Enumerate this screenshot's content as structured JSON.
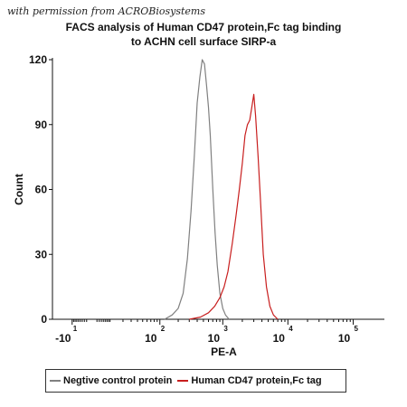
{
  "attribution": "with permission from ACROBiosystems",
  "chart_data": {
    "type": "line",
    "title_lines": [
      "FACS analysis of Human CD47 protein,Fc tag binding",
      "to ACHN cell surface SIRP-a"
    ],
    "xlabel": "PE-A",
    "ylabel": "Count",
    "ylim": [
      0,
      120
    ],
    "yticks": [
      "0",
      "30",
      "60",
      "90",
      "120"
    ],
    "xaxis": {
      "scale": "biexponential",
      "xlim": [
        -30,
        300000
      ]
    },
    "xticks": [
      {
        "label": "-10",
        "exp": "1"
      },
      {
        "label": "10",
        "exp": "2"
      },
      {
        "label": "10",
        "exp": "3"
      },
      {
        "label": "10",
        "exp": "4"
      },
      {
        "label": "10",
        "exp": "5"
      }
    ],
    "legend_position": "bottom",
    "series": [
      {
        "name": "Negtive control protein",
        "color": "#808080",
        "x": [
          120,
          160,
          200,
          240,
          280,
          320,
          360,
          400,
          440,
          480,
          520,
          560,
          600,
          640,
          700,
          760,
          820,
          900,
          1000,
          1100,
          1250
        ],
        "y": [
          0,
          2,
          5,
          12,
          28,
          50,
          75,
          100,
          112,
          120,
          118,
          108,
          98,
          85,
          60,
          40,
          25,
          12,
          5,
          2,
          0
        ]
      },
      {
        "name": "Human CD47 protein,Fc tag",
        "color": "#c81e1e",
        "x": [
          300,
          450,
          600,
          750,
          900,
          1050,
          1200,
          1400,
          1600,
          1800,
          2000,
          2200,
          2400,
          2600,
          2800,
          3000,
          3200,
          3500,
          3800,
          4200,
          4700,
          5300,
          6000,
          7000
        ],
        "y": [
          0,
          1,
          3,
          6,
          10,
          15,
          22,
          35,
          48,
          60,
          72,
          85,
          90,
          92,
          98,
          104,
          94,
          75,
          55,
          30,
          15,
          6,
          2,
          0
        ]
      }
    ]
  }
}
